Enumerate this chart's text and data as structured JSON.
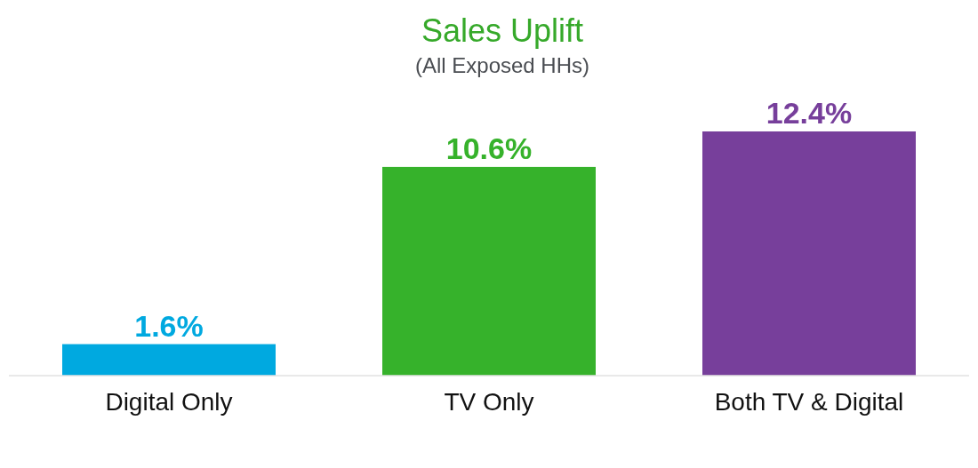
{
  "chart_data": {
    "type": "bar",
    "title": "Sales Uplift",
    "subtitle": "(All Exposed HHs)",
    "categories": [
      "Digital Only",
      "TV Only",
      "Both TV & Digital"
    ],
    "values": [
      1.6,
      10.6,
      12.4
    ],
    "colors": [
      "#00a9e0",
      "#36b22b",
      "#773f9b"
    ],
    "value_labels": [
      "1.6%",
      "10.6%",
      "12.4%"
    ]
  }
}
